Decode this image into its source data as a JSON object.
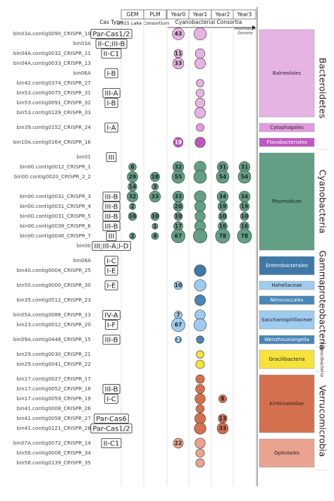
{
  "header": {
    "cas_type": "Cas Type",
    "columns": [
      "GEM",
      "PLM",
      "Year0",
      "Year1",
      "Year2",
      "Year3"
    ],
    "lake": "2015 Lake Consortium",
    "cyano": "Cyanobacterial Consortia",
    "genome": [
      "Phormidium",
      "Genome"
    ]
  },
  "phyla": [
    {
      "name": "Bacteroidetes",
      "groups": [
        {
          "name": "Balneolales",
          "color": "#e6b3e2",
          "rows": [
            {
              "label": "bin03A.contig0090_CRISPR_10",
              "cas": "Par-Cas1/2",
              "cells": [
                null,
                null,
                43,
                {
                  "size": 50
                },
                null,
                null
              ]
            },
            {
              "label": "bin03A",
              "cas": "II-C;III-B",
              "cells": [
                null,
                null,
                null,
                null,
                null,
                null
              ]
            },
            {
              "label": "bin04A.contig0032_CRISPR_11",
              "cas": "II-C1",
              "cells": [
                null,
                null,
                11,
                {
                  "size": 20
                },
                null,
                null
              ]
            },
            {
              "label": "bin04A.contig0033_CRISPR_13",
              "cas": null,
              "cells": [
                null,
                null,
                33,
                {
                  "size": 30
                },
                null,
                null
              ]
            },
            {
              "label": "bin06A",
              "cas": "I-B",
              "cells": [
                null,
                null,
                null,
                null,
                null,
                null
              ]
            },
            {
              "label": "bin42.contig0374_CRISPR_27",
              "cas": null,
              "cells": [
                null,
                null,
                null,
                {
                  "size": 6
                },
                null,
                null
              ]
            },
            {
              "label": "bin53.contig0075_CRISPR_31",
              "cas": "III-A",
              "cells": [
                null,
                null,
                null,
                {
                  "size": 10
                },
                null,
                null
              ]
            },
            {
              "label": "bin53.contig0091_CRISPR_32",
              "cas": "I-B",
              "cells": [
                null,
                null,
                null,
                {
                  "size": 20
                },
                null,
                null
              ]
            },
            {
              "label": "bin53.contig0129_CRISPR_33",
              "cas": null,
              "cells": [
                null,
                null,
                null,
                {
                  "size": 30
                },
                null,
                null
              ]
            }
          ]
        },
        {
          "name": "Cytophagales",
          "color": "#e39be0",
          "rows": [
            {
              "label": "bin39.contig0152_CRISPR_24",
              "cas": "I-A",
              "cells": [
                null,
                null,
                null,
                {
                  "size": 8
                },
                null,
                null
              ]
            }
          ]
        },
        {
          "name": "Flavobacteriales",
          "color": "#c157c2",
          "rows": [
            {
              "label": "bin10A.contig0164_CRISPR_16",
              "cas": null,
              "cells": [
                null,
                null,
                19,
                {
                  "size": 25
                },
                null,
                null
              ]
            }
          ]
        }
      ]
    },
    {
      "name": "Cyanobacteria",
      "groups": [
        {
          "name": "Phormidium",
          "color": "#629f84",
          "rows": [
            {
              "label": "bin01",
              "cas": "III",
              "cells": [
                null,
                null,
                null,
                null,
                null,
                null
              ]
            },
            {
              "label": "bin00.contig0012_CRISPR_1",
              "cas": null,
              "cells": [
                6,
                null,
                32,
                {
                  "size": 40
                },
                31,
                31
              ]
            },
            {
              "label": "bin00.contig0020_CRISPR_2_2",
              "cas": null,
              "cells": [
                29,
                18,
                55,
                {
                  "size": 55
                },
                54,
                54
              ]
            },
            {
              "label": null,
              "cas": null,
              "cells": [
                14,
                3,
                null,
                null,
                null,
                null
              ]
            },
            {
              "label": "bin00.contig0031_CRISPR_3",
              "cas": "III-B",
              "cells": [
                32,
                33,
                33,
                {
                  "size": 40
                },
                34,
                34
              ]
            },
            {
              "label": "bin00.contig0031_CRISPR_4",
              "cas": "III-B",
              "cells": [
                2,
                null,
                20,
                {
                  "size": 30
                },
                19,
                19
              ]
            },
            {
              "label": "bin00.contig0031_CRISPR_5",
              "cas": "III-B",
              "cells": [
                10,
                10,
                10,
                {
                  "size": 25
                },
                10,
                10
              ]
            },
            {
              "label": "bin00.contig0038_CRISPR_6",
              "cas": "III-B",
              "cells": [
                null,
                1,
                17,
                {
                  "size": 30
                },
                16,
                16
              ]
            },
            {
              "label": "bin00.contig0046_CRISPR_7",
              "cas": "III",
              "cells": [
                2,
                4,
                67,
                {
                  "size": 70
                },
                78,
                78
              ]
            },
            {
              "label": "bin00",
              "cas": "III;III-A;I-D",
              "cells": [
                null,
                null,
                null,
                null,
                null,
                null
              ]
            }
          ]
        }
      ]
    },
    {
      "name": "Gammaproteobacteria",
      "groups": [
        {
          "name": "Enterobacterales",
          "color": "#3f79a9",
          "rows": [
            {
              "label": "bin08A",
              "cas": "I-C",
              "cells": [
                null,
                null,
                null,
                null,
                null,
                null
              ]
            },
            {
              "label": "bin40.contig0004_CRISPR_25",
              "cas": "I-E",
              "cells": [
                null,
                null,
                null,
                {
                  "size": 40
                },
                null,
                null
              ]
            }
          ]
        },
        {
          "name": "Hahellaceae",
          "color": "#9ecbee",
          "rows": [
            {
              "label": "bin50.contig0000_CRISPR_30",
              "cas": "I-E",
              "cells": [
                null,
                null,
                10,
                {
                  "size": 40
                },
                null,
                null
              ]
            }
          ]
        },
        {
          "name": "Nitrococcales",
          "color": "#4a86b5",
          "rows": [
            {
              "label": "bin35.contig0512_CRISPR_23",
              "cas": null,
              "cells": [
                null,
                null,
                null,
                {
                  "size": 30
                },
                null,
                null
              ]
            }
          ]
        },
        {
          "name": "Saccharospirillaceae",
          "color": "#9ecbee",
          "rows": [
            {
              "label": "bin05A.contig0086_CRISPR_13",
              "cas": "IV-A",
              "cells": [
                null,
                null,
                7,
                {
                  "size": 25
                },
                null,
                null
              ]
            },
            {
              "label": "bin23.contig0012_CRISPR_20",
              "cas": "I-F",
              "cells": [
                null,
                null,
                67,
                {
                  "size": 50
                },
                null,
                null
              ]
            }
          ]
        },
        {
          "name": "Wenzhouxiangella",
          "color": "#4a86b5",
          "rows": [
            {
              "label": "bin09A.contig0446_CRISPR_15",
              "cas": "III-B",
              "cells": [
                null,
                null,
                2,
                {
                  "size": 6
                },
                null,
                null
              ]
            }
          ]
        }
      ]
    },
    {
      "name": "Patescibacteria",
      "small": true,
      "groups": [
        {
          "name": "Gracilibacteria",
          "color": "#f5e23b",
          "rows": [
            {
              "label": "bin29.contig0030_CRISPR_21",
              "cas": null,
              "cells": [
                null,
                null,
                null,
                {
                  "size": 6
                },
                null,
                null
              ]
            },
            {
              "label": "bin29.contig0041_CRISPR_22",
              "cas": null,
              "cells": [
                null,
                null,
                null,
                {
                  "size": 12
                },
                null,
                null
              ]
            }
          ]
        }
      ]
    },
    {
      "name": "Verrucomicrobia",
      "groups": [
        {
          "name": "Kiritimatiellae",
          "color": "#d5704f",
          "rows": [
            {
              "label": "bin17.contig0027_CRISPR_17",
              "cas": null,
              "cells": [
                null,
                null,
                null,
                {
                  "size": 12
                },
                null,
                null
              ]
            },
            {
              "label": "bin17.contig0052_CRISPR_18",
              "cas": "III-B",
              "cells": [
                null,
                null,
                null,
                {
                  "size": 15
                },
                null,
                null
              ]
            },
            {
              "label": "bin17.contig0059_CRISPR_19",
              "cas": "I-C",
              "cells": [
                null,
                null,
                null,
                {
                  "size": 25
                },
                8,
                null
              ]
            },
            {
              "label": "bin41.contig0008_CRISPR_26",
              "cas": null,
              "cells": [
                null,
                null,
                null,
                {
                  "size": 10
                },
                null,
                null
              ]
            },
            {
              "label": "bin41.contig0058_CRISPR_27",
              "cas": "Par-Cas6",
              "cells": [
                null,
                null,
                null,
                {
                  "size": 30
                },
                13,
                null
              ]
            },
            {
              "label": "bin41.contig0121_CRISPR_28",
              "cas": "Par-Cas1/2",
              "cells": [
                null,
                null,
                null,
                {
                  "size": 40
                },
                33,
                null
              ]
            }
          ]
        },
        {
          "name": "Opitutales",
          "color": "#e9a38f",
          "rows": [
            {
              "label": "bin07A.contig0072_CRISPR_14",
              "cas": "II-C1",
              "cells": [
                null,
                null,
                22,
                {
                  "size": 25
                },
                null,
                null
              ]
            },
            {
              "label": "bin56.contig0006_CRISPR_34",
              "cas": null,
              "cells": [
                null,
                null,
                null,
                {
                  "size": 12
                },
                null,
                null
              ]
            },
            {
              "label": "bin56.contig0139_CRISPR_35",
              "cas": null,
              "cells": [
                null,
                null,
                null,
                {
                  "size": 12
                },
                null,
                null
              ]
            }
          ]
        }
      ]
    }
  ]
}
